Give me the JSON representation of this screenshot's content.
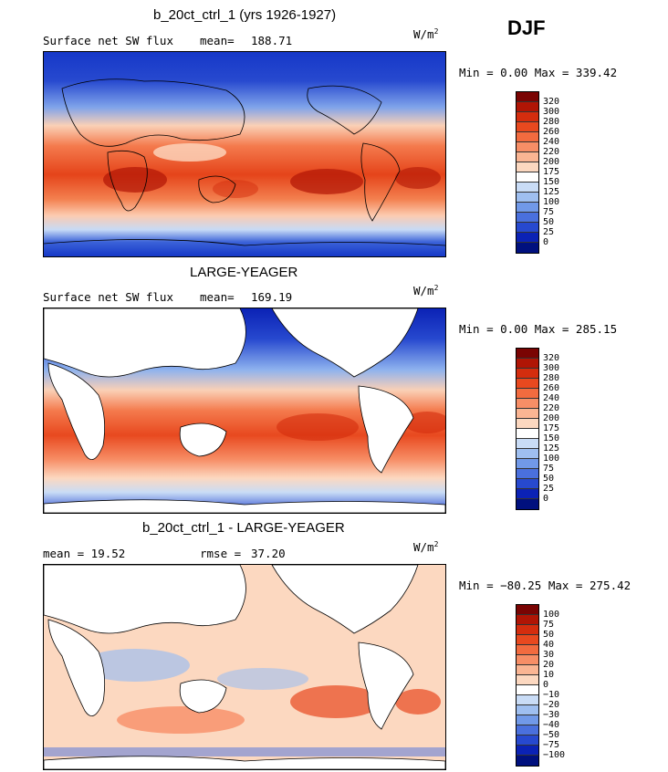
{
  "season": "DJF",
  "units": "W/m",
  "units_exp": "2",
  "panels": [
    {
      "title": "b_20ct_ctrl_1 (yrs 1926-1927)",
      "left_label": "Surface net SW flux",
      "stat_label": "mean=",
      "stat_value": "188.71",
      "minmax": "Min =   0.00 Max = 339.42",
      "scale": [
        "320",
        "300",
        "280",
        "260",
        "240",
        "220",
        "200",
        "175",
        "150",
        "125",
        "100",
        "75",
        "50",
        "25",
        "0"
      ]
    },
    {
      "title": "LARGE-YEAGER",
      "left_label": "Surface net SW flux",
      "stat_label": "mean=",
      "stat_value": "169.19",
      "minmax": "Min =   0.00 Max = 285.15",
      "scale": [
        "320",
        "300",
        "280",
        "260",
        "240",
        "220",
        "200",
        "175",
        "150",
        "125",
        "100",
        "75",
        "50",
        "25",
        "0"
      ]
    },
    {
      "title": "b_20ct_ctrl_1 - LARGE-YEAGER",
      "left_label": "mean =   19.52",
      "stat_label": "rmse =",
      "stat_value": "37.20",
      "minmax": "Min = −80.25 Max = 275.42",
      "scale": [
        "100",
        "75",
        "50",
        "40",
        "30",
        "20",
        "10",
        "0",
        "−10",
        "−20",
        "−30",
        "−40",
        "−50",
        "−75",
        "−100"
      ]
    }
  ],
  "colors": [
    "#7a0403",
    "#b01505",
    "#d42d0e",
    "#e8491f",
    "#f26b3f",
    "#f78e66",
    "#fab593",
    "#fcd8c0",
    "#ffffff",
    "#c9dcf6",
    "#9fbff0",
    "#7199e8",
    "#4a70dd",
    "#2749cf",
    "#0b22b5",
    "#00107e"
  ]
}
